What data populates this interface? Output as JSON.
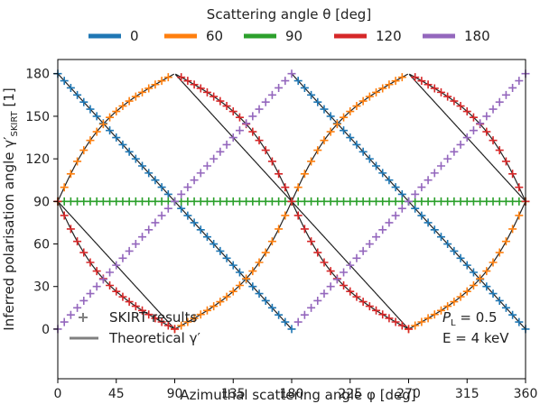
{
  "chart_data": {
    "type": "line",
    "xlabel": "Azimuthal scattering angle φ [deg]",
    "ylabel_main": "Inferred polarisation angle γ′",
    "ylabel_sub": "SKIRT",
    "ylabel_unit": " [1]",
    "xlim": [
      0,
      360
    ],
    "ylim": [
      -35,
      190
    ],
    "xticks": [
      0,
      45,
      90,
      135,
      180,
      225,
      270,
      315,
      360
    ],
    "yticks": [
      0,
      30,
      60,
      90,
      120,
      150,
      180
    ],
    "legend_title": "Scattering angle θ [deg]",
    "legend_placement": "top",
    "series": [
      {
        "name": "0",
        "theta": 0,
        "color": "#1f77b4"
      },
      {
        "name": "60",
        "theta": 60,
        "color": "#ff7f0e"
      },
      {
        "name": "90",
        "theta": 90,
        "color": "#2ca02c"
      },
      {
        "name": "120",
        "theta": 120,
        "color": "#d62728"
      },
      {
        "name": "180",
        "theta": 180,
        "color": "#9467bd"
      }
    ],
    "marker_legend_label": "SKIRT results",
    "line_legend_label": "Theoretical γ′",
    "marker_step_deg": 5,
    "annotation": {
      "pl_symbol": "P",
      "pl_sub": "L",
      "pl_value": " = 0.5",
      "energy": "E = 4 keV"
    },
    "grid": false
  }
}
